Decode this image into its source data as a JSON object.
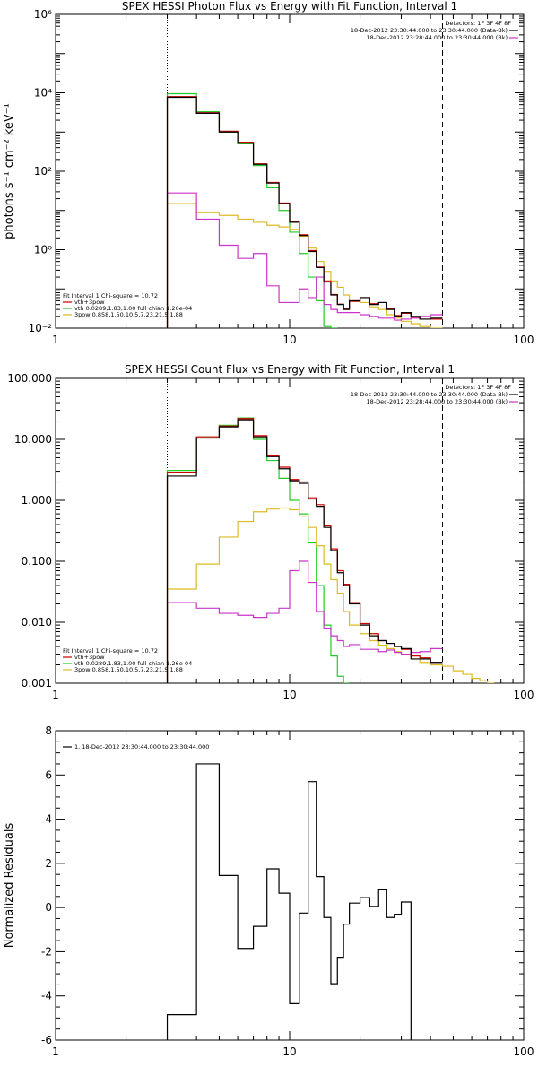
{
  "colors": {
    "data": "#000000",
    "model_total": "#cc0000",
    "background": "#cc33cc",
    "vth": "#22cc22",
    "pow": "#ddbb22"
  },
  "chart_data": [
    {
      "type": "line",
      "title": "SPEX HESSI Photon Flux vs Energy with Fit Function, Interval 1",
      "xlabel": "",
      "ylabel": "photons s⁻¹ cm⁻² keV⁻¹",
      "xscale": "log",
      "yscale": "log",
      "xlim": [
        1,
        100
      ],
      "ylim": [
        0.01,
        1000000
      ],
      "xticks": [
        {
          "v": 1,
          "label": "1"
        },
        {
          "v": 10,
          "label": "10"
        },
        {
          "v": 100,
          "label": "100"
        }
      ],
      "yticks": [
        {
          "v": 0.01,
          "label": "10⁻²"
        },
        {
          "v": 1,
          "label": "10⁰"
        },
        {
          "v": 100,
          "label": "10²"
        },
        {
          "v": 10000,
          "label": "10⁴"
        },
        {
          "v": 1000000,
          "label": "10⁶"
        }
      ],
      "vlines": [
        {
          "x": 3,
          "style": "dotted"
        },
        {
          "x": 45,
          "style": "dashed"
        }
      ],
      "legend_right": {
        "header": "Detectors: 1F 3F 4F 8F",
        "entries": [
          {
            "text": "18-Dec-2012 23:30:44.000 to 23:30:44.000 (Data-Bk)",
            "color_key": "data"
          },
          {
            "text": "18-Dec-2012 23:28:44.000 to 23:30:44.000 (Bk)",
            "color_key": "background"
          }
        ]
      },
      "legend_left": {
        "header": "Fit Interval 1    Chi-square = 10.72",
        "entries": [
          {
            "text": "vth+3pow",
            "color_key": "model_total"
          },
          {
            "text": "vth 0.0289,1.83,1.00  full chian 1.26e-04",
            "color_key": "vth"
          },
          {
            "text": "3pow 0.858,1.50,10.5,7.23,21.5,1.88",
            "color_key": "pow"
          }
        ]
      },
      "edges": [
        3,
        4,
        5,
        6,
        7,
        8,
        9,
        10,
        11,
        12,
        13,
        14,
        15,
        16,
        17,
        18,
        20,
        22,
        24,
        26,
        28,
        30,
        33,
        36,
        40,
        45
      ],
      "series": [
        {
          "color_key": "data",
          "values": [
            7700,
            3000,
            1000,
            520,
            150,
            50,
            15,
            5,
            2.3,
            0.9,
            0.35,
            0.15,
            0.07,
            0.04,
            0.03,
            0.05,
            0.06,
            0.04,
            0.045,
            0.03,
            0.02,
            0.025,
            0.02,
            0.017,
            0.018
          ]
        },
        {
          "color_key": "model_total",
          "values": [
            8000,
            3100,
            1050,
            550,
            155,
            52,
            15.5,
            5.2,
            2.4,
            0.95,
            0.36,
            0.16,
            0.072,
            0.041,
            0.031,
            0.048,
            0.06,
            0.042,
            0.045,
            0.031,
            0.021,
            0.024,
            0.019,
            0.017,
            0.017
          ]
        },
        {
          "color_key": "vth",
          "values": [
            9500,
            3300,
            1000,
            500,
            140,
            38,
            10,
            2.8,
            0.8,
            0.2,
            0.05,
            0.011,
            0.002
          ]
        },
        {
          "color_key": "pow",
          "values": [
            15,
            9,
            7.5,
            6,
            5,
            4.2,
            3.8,
            3.3,
            2.2,
            1.1,
            0.5,
            0.28,
            0.16,
            0.11,
            0.07,
            0.05,
            0.045,
            0.035,
            0.03,
            0.022,
            0.018,
            0.015,
            0.013,
            0.011,
            0.01
          ]
        },
        {
          "color_key": "background",
          "values": [
            28,
            6,
            1.3,
            0.6,
            0.8,
            0.12,
            0.045,
            0.045,
            0.1,
            0.06,
            0.2,
            0.04,
            0.03,
            0.025,
            0.025,
            0.025,
            0.022,
            0.02,
            0.018,
            0.018,
            0.016,
            0.017,
            0.018,
            0.02,
            0.022
          ]
        }
      ]
    },
    {
      "type": "line",
      "title": "SPEX HESSI Count Flux vs Energy with Fit Function, Interval 1",
      "xlabel": "",
      "ylabel": "",
      "xscale": "log",
      "yscale": "log",
      "xlim": [
        1,
        100
      ],
      "ylim": [
        0.001,
        100
      ],
      "xticks": [
        {
          "v": 1,
          "label": "1"
        },
        {
          "v": 10,
          "label": "10"
        },
        {
          "v": 100,
          "label": "100"
        }
      ],
      "yticks": [
        {
          "v": 0.001,
          "label": "0.001"
        },
        {
          "v": 0.01,
          "label": "0.010"
        },
        {
          "v": 0.1,
          "label": "0.100"
        },
        {
          "v": 1,
          "label": "1.000"
        },
        {
          "v": 10,
          "label": "10.000"
        },
        {
          "v": 100,
          "label": "100.000"
        }
      ],
      "vlines": [
        {
          "x": 3,
          "style": "dotted"
        },
        {
          "x": 45,
          "style": "dashed"
        }
      ],
      "legend_right": {
        "header": "Detectors: 1F 3F 4F 8F",
        "entries": [
          {
            "text": "18-Dec-2012 23:30:44.000 to 23:30:44.000 (Data-Bk)",
            "color_key": "data"
          },
          {
            "text": "18-Dec-2012 23:28:44.000 to 23:30:44.000 (Bk)",
            "color_key": "background"
          }
        ]
      },
      "legend_left": {
        "header": "Fit Interval 1    Chi-square = 10.72",
        "entries": [
          {
            "text": "vth+3pow",
            "color_key": "model_total"
          },
          {
            "text": "vth 0.0289,1.83,1.00  full chian 1.26e-04",
            "color_key": "vth"
          },
          {
            "text": "3pow 0.858,1.50,10.5,7.23,21.5,1.88",
            "color_key": "pow"
          }
        ]
      },
      "edges": [
        3,
        4,
        5,
        6,
        7,
        8,
        9,
        10,
        11,
        12,
        13,
        14,
        15,
        16,
        17,
        18,
        20,
        22,
        24,
        26,
        28,
        30,
        33,
        36,
        40,
        45,
        50,
        55,
        60,
        65,
        70,
        75
      ],
      "series": [
        {
          "color_key": "data",
          "values": [
            2.5,
            10.5,
            16,
            21,
            11,
            5.2,
            3.3,
            2.1,
            1.9,
            1.05,
            0.8,
            0.36,
            0.15,
            0.065,
            0.04,
            0.02,
            0.009,
            0.006,
            0.005,
            0.0045,
            0.004,
            0.0037,
            0.0025,
            0.0025,
            0.0022
          ]
        },
        {
          "color_key": "model_total",
          "values": [
            2.9,
            11,
            16.5,
            22,
            11.5,
            5.5,
            3.5,
            2.2,
            2.0,
            1.1,
            0.85,
            0.38,
            0.16,
            0.07,
            0.042,
            0.021,
            0.0095,
            0.0065,
            0.005,
            0.0045,
            0.004,
            0.0036,
            0.0028,
            0.0026,
            0.0022
          ]
        },
        {
          "color_key": "vth",
          "values": [
            3.1,
            11,
            17,
            22.5,
            10,
            4.5,
            2.3,
            1.0,
            0.6,
            0.2,
            0.04,
            0.009,
            0.0028,
            0.0013,
            0.0008
          ]
        },
        {
          "color_key": "pow",
          "values": [
            0.035,
            0.09,
            0.25,
            0.45,
            0.65,
            0.72,
            0.75,
            0.7,
            0.55,
            0.36,
            0.18,
            0.09,
            0.05,
            0.03,
            0.015,
            0.009,
            0.0065,
            0.005,
            0.0042,
            0.0037,
            0.0033,
            0.003,
            0.0025,
            0.0022,
            0.002,
            0.0019,
            0.0016,
            0.0014,
            0.0012,
            0.0011,
            0.001
          ]
        },
        {
          "color_key": "background",
          "values": [
            0.021,
            0.017,
            0.014,
            0.013,
            0.012,
            0.014,
            0.017,
            0.07,
            0.1,
            0.045,
            0.015,
            0.008,
            0.006,
            0.005,
            0.004,
            0.0043,
            0.0036,
            0.0036,
            0.0033,
            0.0035,
            0.0032,
            0.003,
            0.0032,
            0.0033,
            0.0037
          ]
        }
      ]
    },
    {
      "type": "line",
      "title": "",
      "xlabel": "",
      "ylabel": "Normalized Residuals",
      "xscale": "log",
      "yscale": "linear",
      "xlim": [
        1,
        100
      ],
      "ylim": [
        -6,
        8
      ],
      "xticks": [
        {
          "v": 1,
          "label": "1"
        },
        {
          "v": 10,
          "label": "10"
        },
        {
          "v": 100,
          "label": "100"
        }
      ],
      "yticks": [
        {
          "v": -6,
          "label": "-6"
        },
        {
          "v": -4,
          "label": "-4"
        },
        {
          "v": -2,
          "label": "-2"
        },
        {
          "v": 0,
          "label": "0"
        },
        {
          "v": 2,
          "label": "2"
        },
        {
          "v": 4,
          "label": "4"
        },
        {
          "v": 6,
          "label": "6"
        },
        {
          "v": 8,
          "label": "8"
        }
      ],
      "vlines": [],
      "legend_left": {
        "header": "",
        "entries": [
          {
            "text": "1. 18-Dec-2012 23:30:44.000 to 23:30:44.000",
            "color_key": "data"
          }
        ]
      },
      "edges": [
        3,
        4,
        5,
        6,
        7,
        8,
        9,
        10,
        11,
        12,
        13,
        14,
        15,
        16,
        17,
        18,
        20,
        22,
        24,
        26,
        28,
        30,
        33,
        36,
        40,
        45
      ],
      "series": [
        {
          "color_key": "data",
          "values": [
            -4.85,
            6.5,
            1.45,
            -1.85,
            -0.85,
            1.75,
            0.65,
            -4.35,
            -0.25,
            5.7,
            1.4,
            -0.45,
            -3.45,
            -2.25,
            -0.75,
            0.2,
            0.45,
            0.05,
            0.8,
            -0.45,
            -0.3,
            0.25
          ]
        }
      ]
    }
  ]
}
